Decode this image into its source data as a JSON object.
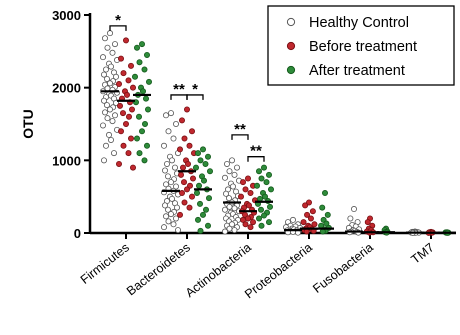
{
  "chart_data": {
    "type": "scatter",
    "ylabel": "OTU",
    "ylim": [
      0,
      3000
    ],
    "yticks": [
      0,
      1000,
      2000,
      3000
    ],
    "categories": [
      "Firmicutes",
      "Bacteroidetes",
      "Actinobacteria",
      "Proteobacteria",
      "Fusobacteria",
      "TM7"
    ],
    "legend_position": "top-right",
    "series": [
      {
        "name": "Healthy Control",
        "color": "#ffffff",
        "stroke": "#555555",
        "median": [
          1950,
          580,
          420,
          40,
          20,
          5
        ],
        "values": [
          [
            2750,
            2680,
            2600,
            2550,
            2480,
            2420,
            2380,
            2330,
            2290,
            2250,
            2210,
            2180,
            2150,
            2120,
            2090,
            2060,
            2040,
            2010,
            1990,
            1970,
            1950,
            1930,
            1910,
            1890,
            1870,
            1850,
            1820,
            1790,
            1760,
            1730,
            1700,
            1660,
            1620,
            1580,
            1540,
            1480,
            1420,
            1350,
            1280,
            1200,
            1100,
            1000
          ],
          [
            1650,
            1620,
            1500,
            1400,
            1300,
            1200,
            1100,
            1050,
            1000,
            950,
            900,
            860,
            820,
            780,
            740,
            700,
            670,
            640,
            610,
            580,
            560,
            530,
            500,
            470,
            440,
            410,
            380,
            350,
            320,
            290,
            260,
            230,
            200,
            160,
            120,
            80,
            40
          ],
          [
            1000,
            950,
            900,
            850,
            800,
            760,
            720,
            680,
            640,
            600,
            570,
            540,
            510,
            480,
            450,
            420,
            400,
            380,
            360,
            340,
            320,
            300,
            280,
            260,
            240,
            220,
            200,
            180,
            160,
            140,
            120,
            100,
            80,
            60,
            40,
            20
          ],
          [
            180,
            150,
            120,
            100,
            90,
            80,
            70,
            60,
            50,
            45,
            40,
            35,
            30,
            25,
            20,
            15,
            10,
            5
          ],
          [
            330,
            200,
            150,
            110,
            90,
            70,
            50,
            40,
            30,
            20,
            15,
            10,
            5
          ],
          [
            20,
            15,
            12,
            10,
            8,
            6,
            5,
            4,
            3,
            2
          ]
        ]
      },
      {
        "name": "Before treatment",
        "color": "#c0282e",
        "stroke": "#7a1014",
        "median": [
          1820,
          850,
          300,
          60,
          10,
          3
        ],
        "values": [
          [
            2650,
            2400,
            2300,
            2200,
            2100,
            2050,
            2000,
            1950,
            1900,
            1850,
            1800,
            1750,
            1700,
            1650,
            1600,
            1500,
            1400,
            1300,
            1200,
            1100,
            950,
            900
          ],
          [
            1700,
            1550,
            1400,
            1300,
            1200,
            1150,
            1100,
            1000,
            950,
            900,
            850,
            800,
            750,
            700,
            650,
            600,
            550,
            500,
            420,
            350,
            250
          ],
          [
            750,
            700,
            650,
            600,
            550,
            500,
            450,
            400,
            380,
            350,
            320,
            300,
            280,
            250,
            220,
            200,
            180,
            150,
            120,
            80
          ],
          [
            420,
            380,
            300,
            250,
            200,
            150,
            120,
            100,
            80,
            60,
            50,
            40,
            30,
            20
          ],
          [
            200,
            150,
            100,
            60,
            40,
            20,
            10,
            5
          ],
          [
            15,
            10,
            8,
            5,
            3,
            2
          ]
        ]
      },
      {
        "name": "After treatment",
        "color": "#2e8b3a",
        "stroke": "#145a1c",
        "median": [
          1900,
          600,
          430,
          60,
          10,
          3
        ],
        "values": [
          [
            2600,
            2550,
            2450,
            2350,
            2250,
            2150,
            2080,
            2000,
            1950,
            1900,
            1850,
            1800,
            1700,
            1600,
            1500,
            1400,
            1300,
            1200,
            1100,
            1000
          ],
          [
            1150,
            1100,
            1050,
            1000,
            950,
            900,
            850,
            780,
            720,
            650,
            600,
            550,
            480,
            400,
            320,
            250,
            180,
            100,
            30
          ],
          [
            900,
            850,
            800,
            750,
            700,
            650,
            600,
            550,
            500,
            470,
            440,
            400,
            360,
            320,
            280,
            240,
            200,
            150,
            100
          ],
          [
            550,
            350,
            250,
            180,
            130,
            100,
            70,
            50,
            30,
            20
          ],
          [
            60,
            40,
            20,
            10,
            5
          ],
          [
            10,
            8,
            5,
            3,
            2
          ]
        ]
      }
    ],
    "annotations": [
      {
        "text": "*",
        "category": 0,
        "from_series": 0,
        "to_series": 1,
        "y": 2850
      },
      {
        "text": "**",
        "category": 1,
        "from_series": 0,
        "to_series": 1,
        "y": 1900
      },
      {
        "text": "*",
        "category": 1,
        "from_series": 1,
        "to_series": 2,
        "y": 1900
      },
      {
        "text": "**",
        "category": 2,
        "from_series": 0,
        "to_series": 1,
        "y": 1350
      },
      {
        "text": "**",
        "category": 2,
        "from_series": 1,
        "to_series": 2,
        "y": 1050
      }
    ]
  }
}
